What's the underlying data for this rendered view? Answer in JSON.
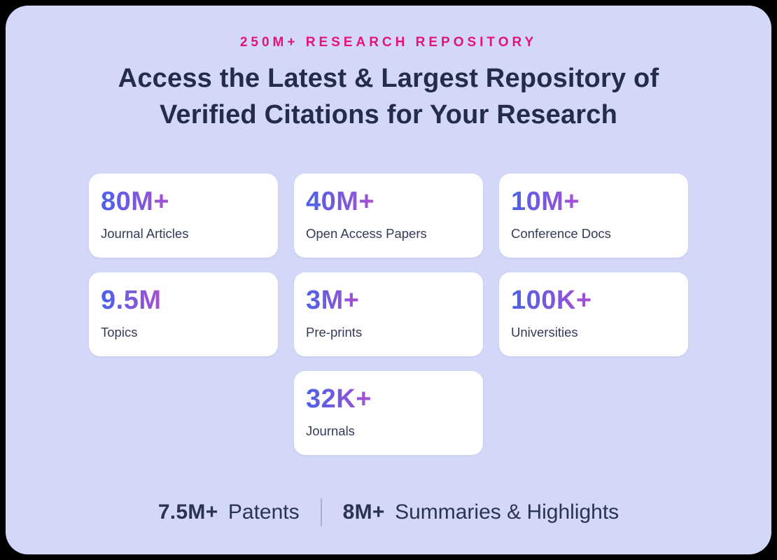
{
  "theme": {
    "page-bg": "#000000",
    "panel-bg": "#d3d8f8",
    "card-bg": "#ffffff",
    "accent-pink": "#e5127e",
    "heading-color": "#242b4d",
    "label-color": "#333b58",
    "footer-color": "#2b3254",
    "divider-color": "#a8aed8",
    "stat-grad-start": "#4a62e8",
    "stat-grad-end": "#a94fd2"
  },
  "header": {
    "eyebrow": "250M+ RESEARCH REPOSITORY",
    "title_line1": "Access the Latest & Largest Repository of",
    "title_line2": "Verified Citations for Your Research"
  },
  "stats": [
    {
      "value": "80M+",
      "label": "Journal Articles"
    },
    {
      "value": "40M+",
      "label": "Open Access Papers"
    },
    {
      "value": "10M+",
      "label": "Conference Docs"
    },
    {
      "value": "9.5M",
      "label": "Topics"
    },
    {
      "value": "3M+",
      "label": "Pre-prints"
    },
    {
      "value": "100K+",
      "label": "Universities"
    },
    {
      "value": "32K+",
      "label": "Journals"
    }
  ],
  "footer": {
    "items": [
      {
        "value": "7.5M+",
        "label": "Patents"
      },
      {
        "value": "8M+",
        "label": "Summaries & Highlights"
      }
    ]
  }
}
